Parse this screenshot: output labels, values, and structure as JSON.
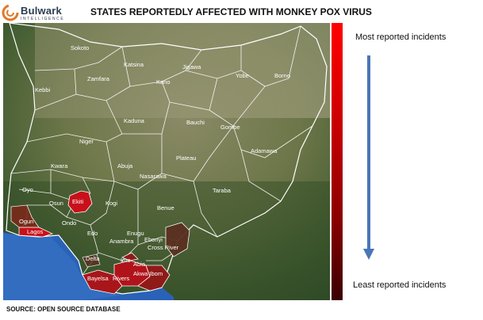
{
  "header": {
    "brand_name": "Bulwark",
    "brand_tagline": "INTELLIGENCE",
    "title": "STATES REPORTEDLY AFFECTED WITH MONKEY POX VIRUS"
  },
  "legend": {
    "top_label": "Most reported incidents",
    "bottom_label": "Least reported incidents",
    "gradient_colors": [
      "#ff0000",
      "#d40000",
      "#8c0000",
      "#3a0000"
    ],
    "arrow_color": "#4a76b8"
  },
  "map": {
    "states": {
      "sokoto": "Sokoto",
      "katsina": "Katsina",
      "jigawa": "Jigawa",
      "zamfara": "Zamfara",
      "kano": "Kano",
      "yobe": "Yobe",
      "borno": "Borno",
      "kebbi": "Kebbi",
      "kaduna": "Kaduna",
      "bauchi": "Bauchi",
      "gombe": "Gombe",
      "niger": "Niger",
      "adamawa": "Adamawa",
      "kwara": "Kwara",
      "abuja": "Abuja",
      "plateau": "Plateau",
      "nasarawa": "Nasarawa",
      "oyo": "Oyo",
      "osun": "Osun",
      "ekiti": "Ekiti",
      "kogi": "Kogi",
      "taraba": "Taraba",
      "benue": "Benue",
      "ogun": "Ogun",
      "ondo": "Ondo",
      "lagos": "Lagos",
      "edo": "Edo",
      "enugu": "Enugu",
      "anambra": "Anambra",
      "ebonyi": "Ebonyi",
      "cross_river": "Cross River",
      "delta": "Delta",
      "imo": "Imo",
      "abia": "Abia",
      "akwa_ibom": "Akwa Ibom",
      "bayelsa": "Bayelsa",
      "rivers": "Rivers"
    },
    "affected_colors": {
      "high": "#c8101a",
      "medium": "#8f1a18",
      "low": "#5a3020"
    }
  },
  "footer": {
    "source": "SOURCE: OPEN SOURCE DATABASE"
  }
}
